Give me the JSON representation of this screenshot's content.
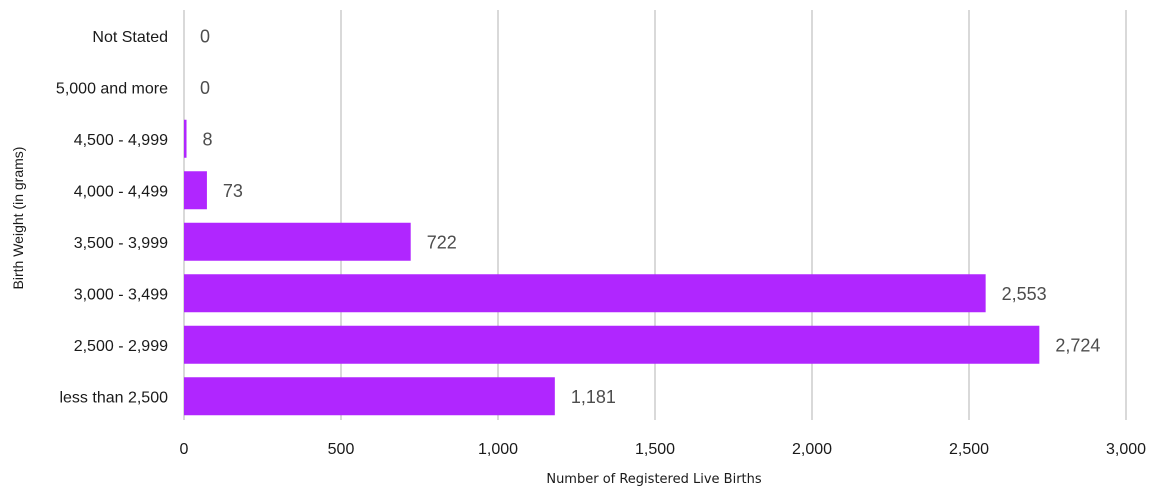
{
  "chart_data": {
    "type": "bar",
    "orientation": "horizontal",
    "categories": [
      "Not Stated",
      "5,000 and more",
      "4,500 - 4,999",
      "4,000 - 4,499",
      "3,500 - 3,999",
      "3,000 - 3,499",
      "2,500 - 2,999",
      "less than 2,500"
    ],
    "values": [
      0,
      0,
      8,
      73,
      722,
      2553,
      2724,
      1181
    ],
    "value_labels": [
      "0",
      "0",
      "8",
      "73",
      "722",
      "2,553",
      "2,724",
      "1,181"
    ],
    "xlabel": "Number of Registered Live Births",
    "ylabel": "Birth Weight (in grams)",
    "xlim": [
      0,
      3000
    ],
    "x_ticks": [
      0,
      500,
      1000,
      1500,
      2000,
      2500,
      3000
    ],
    "x_tick_labels": [
      "0",
      "500",
      "1,000",
      "1,500",
      "2,000",
      "2,500",
      "3,000"
    ],
    "grid": "vertical",
    "legend": "none",
    "bar_color": "#b026ff"
  }
}
